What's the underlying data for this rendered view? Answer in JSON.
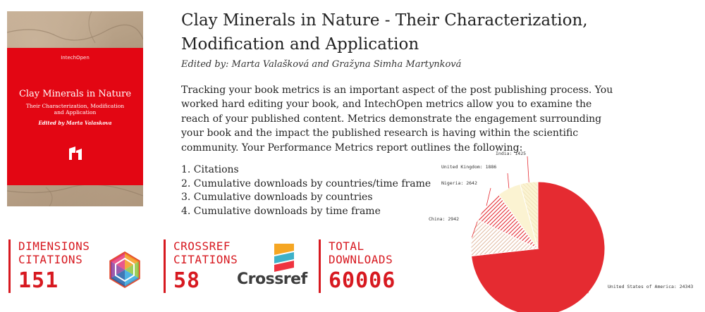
{
  "book": {
    "title": "Clay Minerals in Nature - Their Characterization, Modification and Application",
    "editors": "Edited by: Marta Valašková and Gražyna Simha Martynková",
    "cover": {
      "publisher": "IntechOpen",
      "title": "Clay Minerals in Nature",
      "subtitle": "Their Characterization, Modification and Application",
      "editor": "Edited by Marta Valaskova"
    }
  },
  "intro": "Tracking your book metrics is an important aspect of the post publishing process. You worked hard editing your book, and IntechOpen metrics allow you to examine the reach of your published content. Metrics demonstrate the engagement surrounding your book and the impact the published research is having within the scientific community. Your Performance Metrics report outlines the following:",
  "metrics_list": [
    "1. Citations",
    "2. Cumulative downloads by countries/time frame",
    "3. Cumulative downloads by countries",
    "4. Cumulative downloads by time frame"
  ],
  "stats": {
    "dimensions": {
      "label1": "DIMENSIONS",
      "label2": "CITATIONS",
      "value": "151",
      "logo_icon": "dimensions-logo-icon"
    },
    "crossref": {
      "label1": "CROSSREF",
      "label2": "CITATIONS",
      "value": "58",
      "logo_text": "Crossref",
      "logo_icon": "crossref-logo-icon"
    },
    "total": {
      "label1": "TOTAL",
      "label2": "DOWNLOADS",
      "value": "60006"
    }
  },
  "colors": {
    "accent": "#d71920",
    "cover_red": "#e30613",
    "pie_main": "#e52b31",
    "pie_cream": "#fbf3d2"
  },
  "chart_data": {
    "type": "pie",
    "slices": [
      {
        "label": "United States of America: 24343",
        "value": 24343
      },
      {
        "label": "China: 2942",
        "value": 2942
      },
      {
        "label": "Nigeria: 2642",
        "value": 2642
      },
      {
        "label": "United Kingdom: 1886",
        "value": 1886
      },
      {
        "label": "India: 1425",
        "value": 1425
      }
    ]
  }
}
